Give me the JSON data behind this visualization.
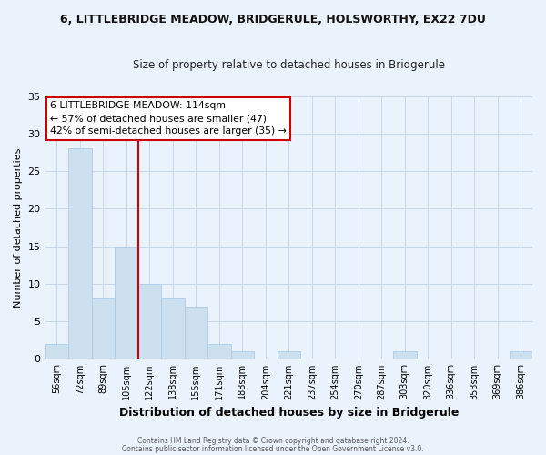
{
  "title": "6, LITTLEBRIDGE MEADOW, BRIDGERULE, HOLSWORTHY, EX22 7DU",
  "subtitle": "Size of property relative to detached houses in Bridgerule",
  "xlabel": "Distribution of detached houses by size in Bridgerule",
  "ylabel": "Number of detached properties",
  "bar_color": "#cde0f0",
  "bar_edge_color": "#aecce8",
  "background_color": "#eaf3fb",
  "plot_bg_color": "#eaf3fb",
  "categories": [
    "56sqm",
    "72sqm",
    "89sqm",
    "105sqm",
    "122sqm",
    "138sqm",
    "155sqm",
    "171sqm",
    "188sqm",
    "204sqm",
    "221sqm",
    "237sqm",
    "254sqm",
    "270sqm",
    "287sqm",
    "303sqm",
    "320sqm",
    "336sqm",
    "353sqm",
    "369sqm",
    "386sqm"
  ],
  "values": [
    2,
    28,
    8,
    15,
    10,
    8,
    7,
    2,
    1,
    0,
    1,
    0,
    0,
    0,
    0,
    1,
    0,
    0,
    0,
    0,
    1
  ],
  "ylim": [
    0,
    35
  ],
  "yticks": [
    0,
    5,
    10,
    15,
    20,
    25,
    30,
    35
  ],
  "property_line_color": "#cc0000",
  "annotation_text": "6 LITTLEBRIDGE MEADOW: 114sqm\n← 57% of detached houses are smaller (47)\n42% of semi-detached houses are larger (35) →",
  "annotation_box_color": "#ffffff",
  "annotation_box_edge_color": "#cc0000",
  "footer_line1": "Contains HM Land Registry data © Crown copyright and database right 2024.",
  "footer_line2": "Contains public sector information licensed under the Open Government Licence v3.0.",
  "grid_color": "#c8d8e8"
}
